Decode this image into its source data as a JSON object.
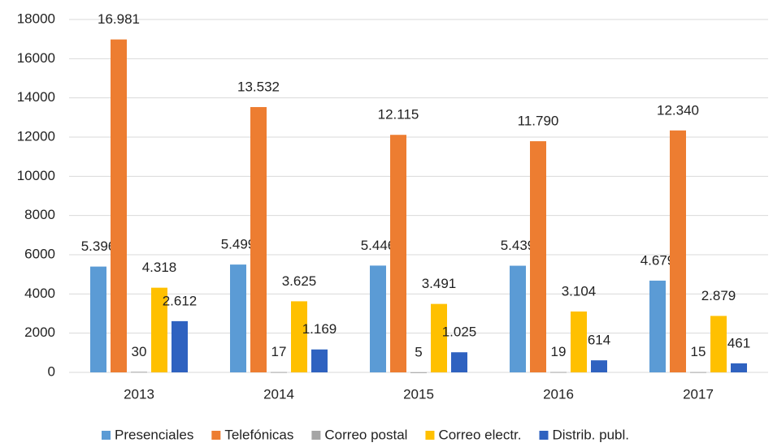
{
  "chart_data": {
    "type": "bar",
    "categories": [
      "2013",
      "2014",
      "2015",
      "2016",
      "2017"
    ],
    "series": [
      {
        "name": "Presenciales",
        "color": "#5b9bd5",
        "values": [
          5396,
          5499,
          5446,
          5439,
          4679
        ],
        "value_labels": [
          "5.396",
          "5.499",
          "5.446",
          "5.439",
          "4.679"
        ]
      },
      {
        "name": "Telefónicas",
        "color": "#ed7d31",
        "values": [
          16981,
          13532,
          12115,
          11790,
          12340
        ],
        "value_labels": [
          "16.981",
          "13.532",
          "12.115",
          "11.790",
          "12.340"
        ]
      },
      {
        "name": "Correo postal",
        "color": "#a5a5a5",
        "values": [
          30,
          17,
          5,
          19,
          15
        ]
      },
      {
        "name": "Correo electr.",
        "color": "#ffc000",
        "values": [
          4318,
          3625,
          3491,
          3104,
          2879
        ],
        "value_labels": [
          "4.318",
          "3.625",
          "3.491",
          "3.104",
          "2.879"
        ]
      },
      {
        "name": "Distrib. publ.",
        "color": "#2f62c0",
        "values": [
          2612,
          1169,
          1025,
          614,
          461
        ],
        "value_labels": [
          "2.612",
          "1.169",
          "1.025",
          "614",
          "461"
        ]
      }
    ],
    "ylim": [
      0,
      18000
    ],
    "yticks": [
      0,
      2000,
      4000,
      6000,
      8000,
      10000,
      12000,
      14000,
      16000,
      18000
    ],
    "grid": true,
    "legend": "bottom"
  }
}
